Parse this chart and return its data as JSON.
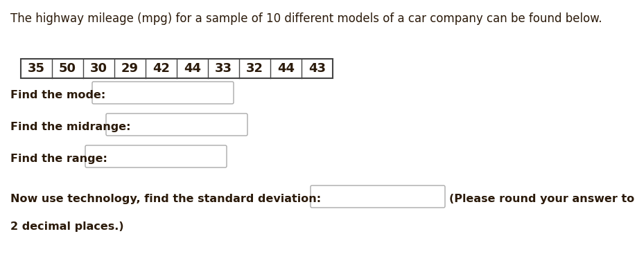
{
  "title": "The highway mileage (mpg) for a sample of 10 different models of a car company can be found below.",
  "data_values": [
    35,
    50,
    30,
    29,
    42,
    44,
    33,
    32,
    44,
    43
  ],
  "background_color": "#ffffff",
  "text_color": "#2b1a0a",
  "font_size_title": 12,
  "font_size_body": 11.5,
  "font_size_table": 13,
  "label_mode": "Find the mode:",
  "label_midrange": "Find the midrange:",
  "label_range": "Find the range:",
  "label_stddev": "Now use technology, find the standard deviation:",
  "label_round": "(Please round your answer to",
  "label_round2": "2 decimal places.)",
  "table_border_color": "#444444",
  "input_box_color": "#aaaaaa"
}
